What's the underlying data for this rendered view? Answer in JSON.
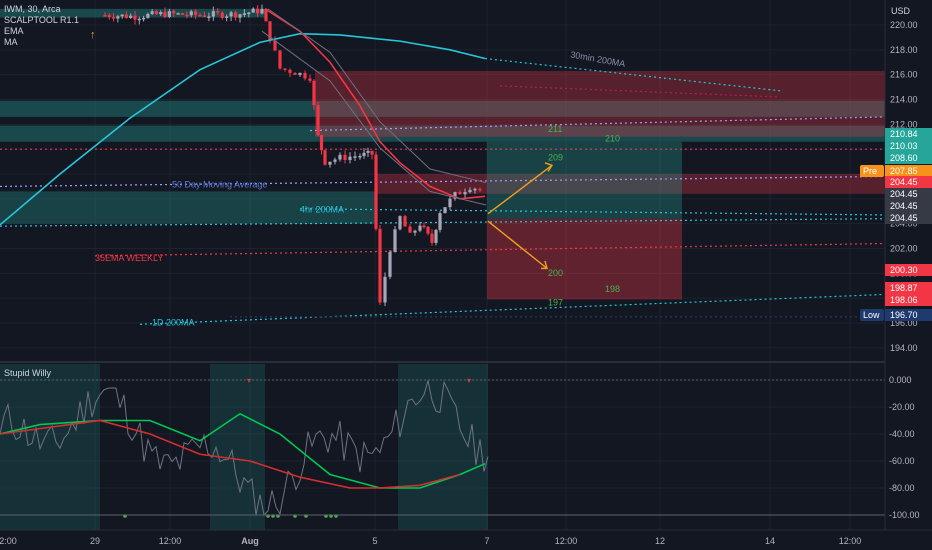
{
  "legend": {
    "symbol": "IWM, 30, Arca",
    "indicators": [
      "SCALPTOOL R1.1",
      "EMA",
      "MA"
    ]
  },
  "currency": "USD",
  "oscillator_title": "Stupid Willy",
  "chart_data": [
    {
      "type": "candlestick",
      "title": "IWM, 30, Arca",
      "ylabel": "USD",
      "ylim": [
        194.7,
        221.3
      ],
      "y_ticks": [
        "220.00",
        "218.00",
        "216.00",
        "214.00",
        "212.00",
        "210.00",
        "208.00",
        "206.00",
        "204.00",
        "202.00",
        "200.00",
        "198.00",
        "196.00",
        "194.00"
      ],
      "x_ticks": [
        "2:00",
        "29",
        "12:00",
        "Aug",
        "5",
        "7",
        "12:00",
        "12",
        "14",
        "12:00"
      ],
      "price_labels": [
        {
          "text": "210.84",
          "color": "#26a69a"
        },
        {
          "text": "210.03",
          "color": "#26a69a"
        },
        {
          "text": "208.60",
          "color": "#26a69a"
        },
        {
          "text": "207.85",
          "color": "#f7931a",
          "tag": "Pre"
        },
        {
          "text": "204.45",
          "color": "#f23645"
        },
        {
          "text": "204.45",
          "color": "#363a45"
        },
        {
          "text": "204.45",
          "color": "#363a45"
        },
        {
          "text": "204.45",
          "color": "#363a45"
        },
        {
          "text": "200.30",
          "color": "#f23645"
        },
        {
          "text": "198.87",
          "color": "#f23645"
        },
        {
          "text": "198.06",
          "color": "#f23645"
        },
        {
          "text": "196.70",
          "color": "#1e3a6e",
          "tag": "Low"
        }
      ],
      "annotations": [
        "30min 200MA",
        "50 Day Moving Average",
        "4hr 200MA",
        "35EMA WEEKLY",
        "1D 200MA",
        "211",
        "210",
        "209",
        "200",
        "198",
        "197"
      ],
      "series": [
        {
          "color": "#26c6da",
          "values": [
            [
              0,
              203.9
            ],
            [
              60,
              208.0
            ],
            [
              130,
              212.5
            ],
            [
              200,
              216.4
            ],
            [
              260,
              218.6
            ],
            [
              300,
              219.3
            ],
            [
              340,
              219.2
            ],
            [
              400,
              218.7
            ],
            [
              450,
              218.0
            ],
            [
              485,
              217.3
            ]
          ]
        },
        {
          "color": "#f23645",
          "values": [
            [
              265,
              221.3
            ],
            [
              300,
              219.5
            ],
            [
              330,
              217.0
            ],
            [
              360,
              213.5
            ],
            [
              380,
              210.6
            ],
            [
              400,
              208.9
            ],
            [
              430,
              207.0
            ],
            [
              460,
              206.0
            ],
            [
              485,
              206.2
            ]
          ]
        }
      ]
    },
    {
      "type": "line",
      "title": "Stupid Willy",
      "ylim": [
        -100,
        0
      ],
      "y_ticks": [
        "0.000",
        "-20.00",
        "-40.00",
        "-60.00",
        "-80.00",
        "-100.00"
      ],
      "series": [
        {
          "color": "#00c853",
          "values": [
            [
              0,
              -40
            ],
            [
              40,
              -33
            ],
            [
              100,
              -30
            ],
            [
              150,
              -30
            ],
            [
              200,
              -45
            ],
            [
              240,
              -25
            ],
            [
              280,
              -40
            ],
            [
              330,
              -70
            ],
            [
              380,
              -80
            ],
            [
              420,
              -80
            ],
            [
              460,
              -70
            ],
            [
              485,
              -62
            ]
          ]
        },
        {
          "color": "#d32f2f",
          "values": [
            [
              0,
              -40
            ],
            [
              100,
              -30
            ],
            [
              150,
              -40
            ],
            [
              200,
              -55
            ],
            [
              250,
              -60
            ],
            [
              300,
              -72
            ],
            [
              350,
              -80
            ],
            [
              380,
              -80
            ],
            [
              420,
              -78
            ],
            [
              460,
              -70
            ]
          ]
        }
      ]
    }
  ]
}
